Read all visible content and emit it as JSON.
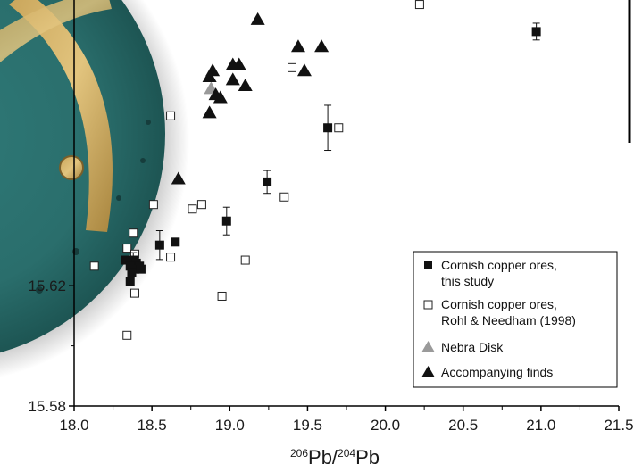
{
  "chart_data": {
    "type": "scatter",
    "xlabel": {
      "pre1": "206",
      "mid": "Pb/",
      "pre2": "204",
      "post": "Pb"
    },
    "ylabel": "",
    "xlim": [
      18.0,
      21.5
    ],
    "ylim": [
      15.58,
      15.715
    ],
    "xticks": [
      18.0,
      18.5,
      19.0,
      19.5,
      20.0,
      20.5,
      21.0,
      21.5
    ],
    "xtick_labels": [
      "18.0",
      "18.5",
      "19.0",
      "19.5",
      "20.0",
      "20.5",
      "21.0",
      "21.5"
    ],
    "yticks_visible": [
      15.58,
      15.62
    ],
    "ytick_labels": [
      "15.58",
      "15.62"
    ],
    "grid": false,
    "legend_position": "bottom-right",
    "colors": {
      "filled": "#111111",
      "nebra": "#9a9a9a",
      "open_edge": "#222222"
    },
    "series": [
      {
        "name": "Cornish copper ores, this study",
        "label_lines": [
          "Cornish copper ores,",
          "this study"
        ],
        "marker": "square-filled",
        "points": [
          {
            "x": 20.97,
            "y": 15.7045,
            "err": 0.0028
          },
          {
            "x": 19.63,
            "y": 15.6725,
            "err": 0.0075
          },
          {
            "x": 19.24,
            "y": 15.6545,
            "err": 0.0038
          },
          {
            "x": 18.98,
            "y": 15.6415,
            "err": 0.0046
          },
          {
            "x": 18.65,
            "y": 15.6345
          },
          {
            "x": 18.55,
            "y": 15.6335,
            "err": 0.0048
          },
          {
            "x": 18.33,
            "y": 15.6285
          },
          {
            "x": 18.38,
            "y": 15.6285,
            "err": 0.0025
          },
          {
            "x": 18.4,
            "y": 15.6275
          },
          {
            "x": 18.36,
            "y": 15.6265
          },
          {
            "x": 18.42,
            "y": 15.6265
          },
          {
            "x": 18.39,
            "y": 15.6255
          },
          {
            "x": 18.43,
            "y": 15.6255
          },
          {
            "x": 18.37,
            "y": 15.6245
          },
          {
            "x": 18.36,
            "y": 15.6215
          }
        ]
      },
      {
        "name": "Cornish copper ores, Rohl & Needham (1998)",
        "label_lines": [
          "Cornish copper ores,",
          "Rohl & Needham (1998)"
        ],
        "marker": "square-open",
        "points": [
          {
            "x": 20.22,
            "y": 15.7135
          },
          {
            "x": 19.4,
            "y": 15.6925
          },
          {
            "x": 19.7,
            "y": 15.6725
          },
          {
            "x": 18.62,
            "y": 15.6765
          },
          {
            "x": 19.35,
            "y": 15.6495
          },
          {
            "x": 18.51,
            "y": 15.647
          },
          {
            "x": 18.76,
            "y": 15.6455
          },
          {
            "x": 18.82,
            "y": 15.647
          },
          {
            "x": 18.38,
            "y": 15.6375
          },
          {
            "x": 18.34,
            "y": 15.6325
          },
          {
            "x": 18.39,
            "y": 15.6305
          },
          {
            "x": 18.62,
            "y": 15.6295
          },
          {
            "x": 19.1,
            "y": 15.6285
          },
          {
            "x": 18.13,
            "y": 15.6265
          },
          {
            "x": 18.37,
            "y": 15.6245
          },
          {
            "x": 18.39,
            "y": 15.6175
          },
          {
            "x": 18.95,
            "y": 15.6165
          },
          {
            "x": 18.34,
            "y": 15.6035
          }
        ]
      },
      {
        "name": "Nebra Disk",
        "label_lines": [
          "Nebra Disk"
        ],
        "marker": "triangle-gray",
        "points": [
          {
            "x": 18.88,
            "y": 15.6855
          }
        ]
      },
      {
        "name": "Accompanying finds",
        "label_lines": [
          "Accompanying finds"
        ],
        "marker": "triangle-filled",
        "points": [
          {
            "x": 19.18,
            "y": 15.7085
          },
          {
            "x": 19.44,
            "y": 15.6995
          },
          {
            "x": 19.59,
            "y": 15.6995
          },
          {
            "x": 19.02,
            "y": 15.6935
          },
          {
            "x": 19.06,
            "y": 15.6935
          },
          {
            "x": 18.89,
            "y": 15.6915
          },
          {
            "x": 18.87,
            "y": 15.6895
          },
          {
            "x": 19.48,
            "y": 15.6915
          },
          {
            "x": 19.02,
            "y": 15.6885
          },
          {
            "x": 19.1,
            "y": 15.6865
          },
          {
            "x": 18.91,
            "y": 15.6835
          },
          {
            "x": 18.94,
            "y": 15.6825
          },
          {
            "x": 18.87,
            "y": 15.6775
          },
          {
            "x": 18.67,
            "y": 15.6555
          }
        ]
      }
    ]
  }
}
